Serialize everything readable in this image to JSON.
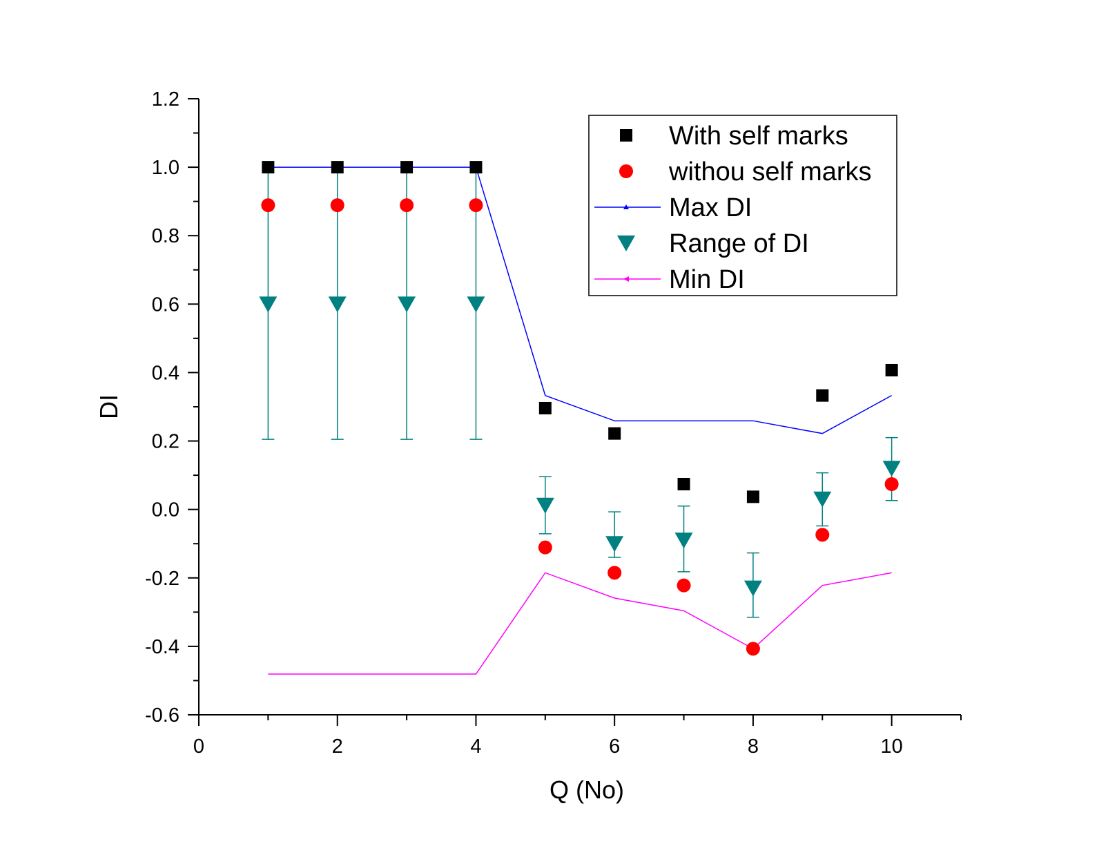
{
  "chart_data": {
    "type": "scatter",
    "xlabel": "Q (No)",
    "ylabel": "DI",
    "xlim": [
      0,
      11
    ],
    "ylim": [
      -0.6,
      1.2
    ],
    "x_ticks": [
      "0",
      "2",
      "4",
      "6",
      "8",
      "10"
    ],
    "y_ticks": [
      "-0.6",
      "-0.4",
      "-0.2",
      "0.0",
      "0.2",
      "0.4",
      "0.6",
      "0.8",
      "1.0",
      "1.2"
    ],
    "x": [
      1,
      2,
      3,
      4,
      5,
      6,
      7,
      8,
      9,
      10
    ],
    "legend_position": "top-right",
    "grid": false,
    "series": [
      {
        "name": "With self marks",
        "marker": "square",
        "color": "#000000",
        "values": [
          1.0,
          1.0,
          1.0,
          1.0,
          0.296,
          0.222,
          0.074,
          0.037,
          0.333,
          0.407
        ]
      },
      {
        "name": "withou self marks",
        "marker": "circle",
        "color": "#ff0000",
        "values": [
          0.889,
          0.889,
          0.889,
          0.889,
          -0.111,
          -0.185,
          -0.222,
          -0.407,
          -0.074,
          0.074
        ]
      },
      {
        "name": "Max DI",
        "marker": "line-triangle-up",
        "color": "#0000ff",
        "values": [
          1.0,
          1.0,
          1.0,
          1.0,
          0.333,
          0.259,
          0.259,
          0.259,
          0.222,
          0.333
        ]
      },
      {
        "name": "Range of DI",
        "marker": "triangle-down",
        "color": "#008080",
        "values": [
          0.6,
          0.6,
          0.6,
          0.6,
          0.012,
          -0.1,
          -0.09,
          -0.23,
          0.03,
          0.12
        ],
        "error_low": [
          0.205,
          0.205,
          0.205,
          0.205,
          -0.071,
          -0.14,
          -0.182,
          -0.315,
          -0.048,
          0.026
        ],
        "error_high": [
          1.0,
          1.0,
          1.0,
          1.0,
          0.096,
          -0.007,
          0.01,
          -0.127,
          0.107,
          0.21
        ]
      },
      {
        "name": "Min DI",
        "marker": "line-triangle-left",
        "color": "#ff00ff",
        "values": [
          -0.481,
          -0.481,
          -0.481,
          -0.481,
          -0.185,
          -0.259,
          -0.296,
          -0.407,
          -0.222,
          -0.185
        ]
      }
    ]
  }
}
